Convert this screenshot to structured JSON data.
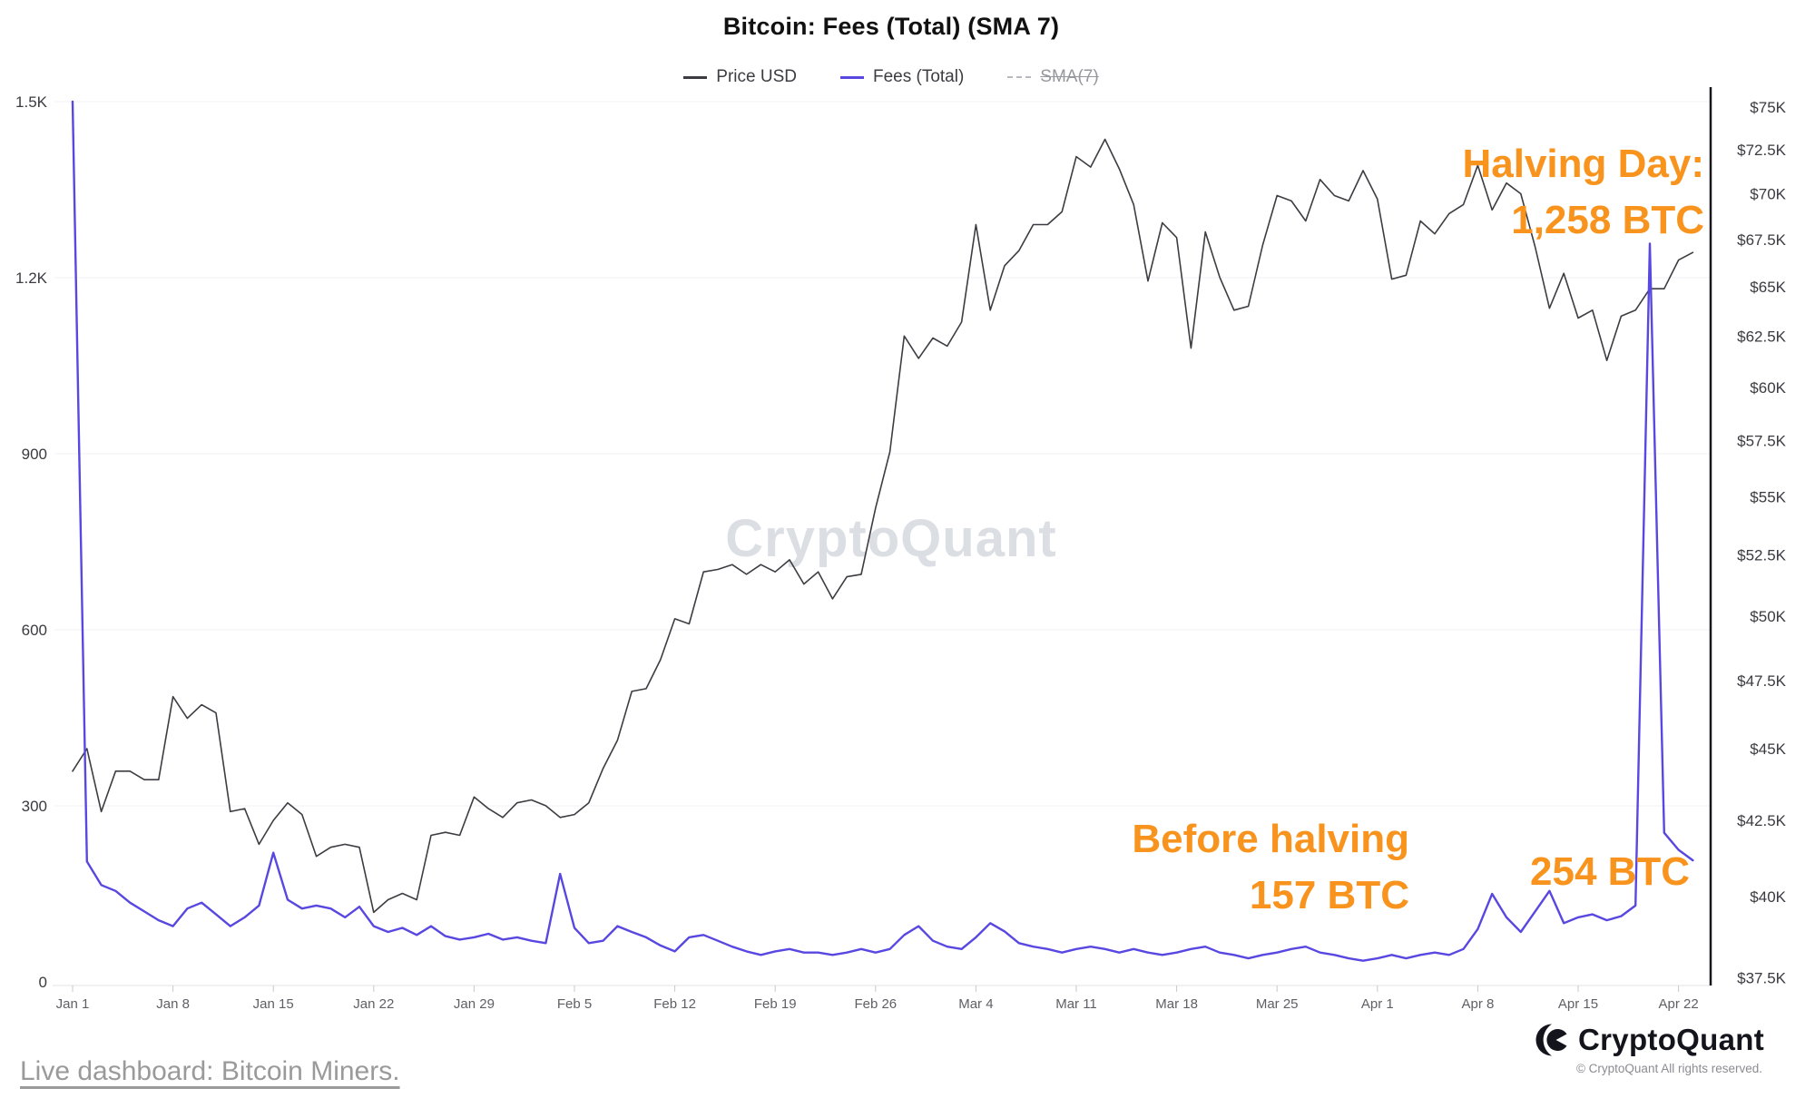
{
  "title": "Bitcoin: Fees (Total) (SMA 7)",
  "watermark": "CryptoQuant",
  "annotations": {
    "halving_line1": "Halving Day:",
    "halving_line2": "1,258 BTC",
    "before_line1": "Before halving",
    "before_line2": "157 BTC",
    "after_spike": "254 BTC"
  },
  "footer": {
    "link_text": "Live dashboard: Bitcoin Miners.",
    "brand_name": "CryptoQuant",
    "copyright": "© CryptoQuant All rights reserved."
  },
  "colors": {
    "accent_orange": "#f8941d",
    "price_line": "#3c3c42",
    "fees_line": "#5847e0",
    "disabled_gray": "#b9b9bf"
  },
  "chart_data": {
    "type": "line",
    "title": "Bitcoin: Fees (Total) (SMA 7)",
    "x_unit": "days since Jan 1",
    "grid": "horizontal-faint",
    "legend_position": "top-center",
    "x_ticks": [
      {
        "day": 0,
        "label": "Jan 1"
      },
      {
        "day": 7,
        "label": "Jan 8"
      },
      {
        "day": 14,
        "label": "Jan 15"
      },
      {
        "day": 21,
        "label": "Jan 22"
      },
      {
        "day": 28,
        "label": "Jan 29"
      },
      {
        "day": 35,
        "label": "Feb 5"
      },
      {
        "day": 42,
        "label": "Feb 12"
      },
      {
        "day": 49,
        "label": "Feb 19"
      },
      {
        "day": 56,
        "label": "Feb 26"
      },
      {
        "day": 63,
        "label": "Mar 4"
      },
      {
        "day": 70,
        "label": "Mar 11"
      },
      {
        "day": 77,
        "label": "Mar 18"
      },
      {
        "day": 84,
        "label": "Mar 25"
      },
      {
        "day": 91,
        "label": "Apr 1"
      },
      {
        "day": 98,
        "label": "Apr 8"
      },
      {
        "day": 105,
        "label": "Apr 15"
      },
      {
        "day": 112,
        "label": "Apr 22"
      }
    ],
    "left_axis": {
      "series": "Fees (Total)",
      "unit": "BTC",
      "scale": "linear",
      "range": [
        0,
        1500
      ],
      "ticks": [
        {
          "value": 0,
          "label": "0"
        },
        {
          "value": 300,
          "label": "300"
        },
        {
          "value": 600,
          "label": "600"
        },
        {
          "value": 900,
          "label": "900"
        },
        {
          "value": 1200,
          "label": "1.2K"
        },
        {
          "value": 1500,
          "label": "1.5K"
        }
      ]
    },
    "right_axis": {
      "series": "Price USD",
      "unit": "USD",
      "scale": "log",
      "range_usd_k": [
        37.5,
        75
      ],
      "ticks": [
        {
          "value": 37.5,
          "label": "$37.5K"
        },
        {
          "value": 40,
          "label": "$40K"
        },
        {
          "value": 42.5,
          "label": "$42.5K"
        },
        {
          "value": 45,
          "label": "$45K"
        },
        {
          "value": 47.5,
          "label": "$47.5K"
        },
        {
          "value": 50,
          "label": "$50K"
        },
        {
          "value": 52.5,
          "label": "$52.5K"
        },
        {
          "value": 55,
          "label": "$55K"
        },
        {
          "value": 57.5,
          "label": "$57.5K"
        },
        {
          "value": 60,
          "label": "$60K"
        },
        {
          "value": 62.5,
          "label": "$62.5K"
        },
        {
          "value": 65,
          "label": "$65K"
        },
        {
          "value": 67.5,
          "label": "$67.5K"
        },
        {
          "value": 70,
          "label": "$70K"
        },
        {
          "value": 72.5,
          "label": "$72.5K"
        },
        {
          "value": 75,
          "label": "$75K"
        }
      ]
    },
    "series": [
      {
        "name": "Price USD",
        "axis": "right",
        "unit": "USD (thousands)",
        "color": "#3c3c42",
        "disabled": false,
        "values": [
          44.2,
          45.0,
          42.8,
          44.2,
          44.2,
          43.9,
          43.9,
          46.9,
          46.1,
          46.6,
          46.3,
          42.8,
          42.9,
          41.7,
          42.5,
          43.1,
          42.7,
          41.3,
          41.6,
          41.7,
          41.6,
          39.5,
          39.9,
          40.1,
          39.9,
          42.0,
          42.1,
          42.0,
          43.3,
          42.9,
          42.6,
          43.1,
          43.2,
          43.0,
          42.6,
          42.7,
          43.1,
          44.3,
          45.3,
          47.1,
          47.2,
          48.3,
          49.9,
          49.7,
          51.8,
          51.9,
          52.1,
          51.7,
          52.1,
          51.8,
          52.3,
          51.3,
          51.8,
          50.7,
          51.6,
          51.7,
          54.5,
          57.0,
          62.5,
          61.4,
          62.4,
          62.0,
          63.2,
          68.3,
          63.8,
          66.1,
          66.9,
          68.3,
          68.3,
          69.0,
          72.1,
          71.5,
          73.1,
          71.4,
          69.4,
          65.3,
          68.4,
          67.6,
          61.9,
          67.9,
          65.5,
          63.8,
          64.0,
          67.2,
          69.9,
          69.6,
          68.5,
          70.8,
          69.9,
          69.6,
          71.3,
          69.7,
          65.4,
          65.6,
          68.5,
          67.8,
          68.9,
          69.4,
          71.6,
          69.1,
          70.6,
          70.0,
          67.1,
          63.9,
          65.7,
          63.4,
          63.8,
          61.3,
          63.5,
          63.8,
          64.9,
          64.9,
          66.4,
          66.8
        ]
      },
      {
        "name": "Fees (Total)",
        "axis": "left",
        "unit": "BTC",
        "color": "#5847e0",
        "disabled": false,
        "values": [
          1500,
          205,
          165,
          155,
          135,
          120,
          105,
          95,
          125,
          135,
          115,
          95,
          110,
          130,
          220,
          140,
          125,
          130,
          125,
          110,
          128,
          95,
          85,
          92,
          80,
          95,
          78,
          72,
          76,
          82,
          72,
          76,
          70,
          66,
          184,
          92,
          66,
          70,
          95,
          85,
          76,
          62,
          52,
          76,
          80,
          70,
          60,
          52,
          46,
          52,
          56,
          50,
          50,
          46,
          50,
          56,
          50,
          56,
          80,
          95,
          70,
          60,
          56,
          76,
          100,
          86,
          66,
          60,
          56,
          50,
          56,
          60,
          56,
          50,
          56,
          50,
          46,
          50,
          56,
          60,
          50,
          46,
          40,
          46,
          50,
          56,
          60,
          50,
          46,
          40,
          36,
          40,
          46,
          40,
          46,
          50,
          46,
          56,
          90,
          150,
          110,
          85,
          120,
          155,
          100,
          110,
          115,
          105,
          112,
          130,
          1258,
          254,
          225,
          207
        ]
      },
      {
        "name": "SMA(7)",
        "axis": "left",
        "unit": "BTC",
        "color": "#b9b9bf",
        "disabled": true,
        "values": []
      }
    ],
    "annotations": [
      {
        "text": "Halving Day: 1,258 BTC",
        "target": "fees spike Apr 20",
        "color": "#f8941d"
      },
      {
        "text": "Before halving 157 BTC",
        "target": "fees Apr 8-19",
        "color": "#f8941d"
      },
      {
        "text": "254 BTC",
        "target": "fees Apr 21 after halving",
        "color": "#f8941d"
      }
    ]
  }
}
